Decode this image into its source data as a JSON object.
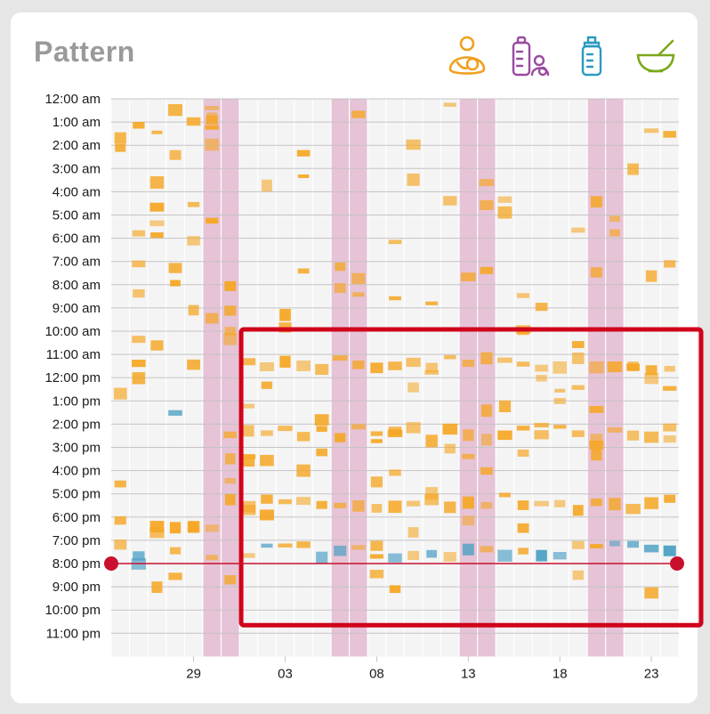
{
  "header": {
    "title": "Pattern",
    "icons": [
      {
        "name": "nursing-icon",
        "color": "#f0a020"
      },
      {
        "name": "bottle-breast-milk-icon",
        "color": "#9b4aa0"
      },
      {
        "name": "bottle-formula-icon",
        "color": "#2a9ac0"
      },
      {
        "name": "solids-bowl-icon",
        "color": "#7aa81a"
      }
    ]
  },
  "chart_data": {
    "type": "heatmap",
    "y_tick_labels": [
      "12:00 am",
      "1:00 am",
      "2:00 am",
      "3:00 am",
      "4:00 am",
      "5:00 am",
      "6:00 am",
      "7:00 am",
      "8:00 am",
      "9:00 am",
      "10:00 am",
      "11:00 am",
      "12:00 pm",
      "1:00 pm",
      "2:00 pm",
      "3:00 pm",
      "4:00 pm",
      "5:00 pm",
      "6:00 pm",
      "7:00 pm",
      "8:00 pm",
      "9:00 pm",
      "10:00 pm",
      "11:00 pm"
    ],
    "x_tick_labels": [
      {
        "label": "29",
        "day_index": 4
      },
      {
        "label": "03",
        "day_index": 9
      },
      {
        "label": "08",
        "day_index": 14
      },
      {
        "label": "13",
        "day_index": 19
      },
      {
        "label": "18",
        "day_index": 24
      },
      {
        "label": "23",
        "day_index": 29
      }
    ],
    "day_count": 31,
    "weekend_day_indices": [
      5,
      6,
      12,
      13,
      19,
      20,
      26,
      27
    ],
    "current_time_hour": 20.0,
    "highlight_region": {
      "day_start": 7,
      "day_end": 31,
      "hour_start": 10,
      "hour_end": 22.5
    },
    "colors": {
      "nursing": "#f5a623",
      "formula": "#4a9fc4",
      "weekend": "#e6c3d6",
      "marker": "#c8102e",
      "highlight": "#d0021b"
    }
  }
}
